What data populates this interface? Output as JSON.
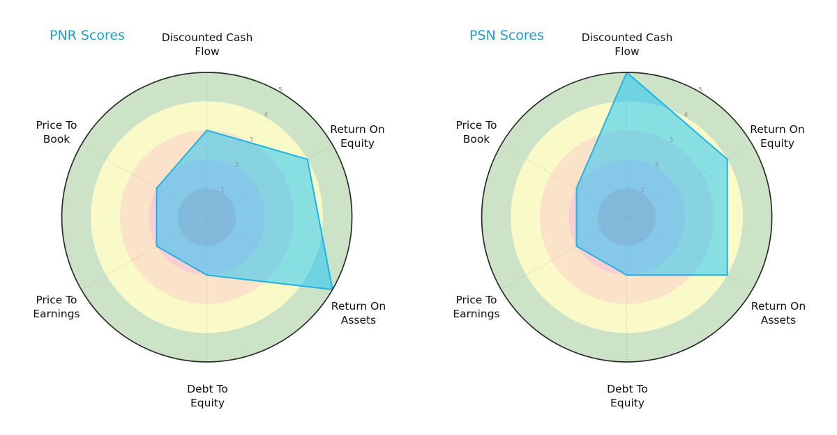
{
  "style": {
    "background": "#ffffff",
    "title_color": "#1d9ece",
    "label_color": "#111111",
    "tick_color": "#8c8c8c",
    "grid_color": "#9a9a9a",
    "outer_circle_color": "#2a2a2a",
    "band_colors": [
      "#f2b4bc",
      "#f8d0d4",
      "#fae3c8",
      "#fafac8",
      "#cde3c8"
    ],
    "polygon_fill": "rgba(0,191,255,0.46)",
    "polygon_stroke": "#1fb2e4"
  },
  "axis_label_lines": [
    [
      "Discounted Cash",
      "Flow"
    ],
    [
      "Return On",
      "Equity"
    ],
    [
      "Return On",
      "Assets"
    ],
    [
      "Debt To",
      "Equity"
    ],
    [
      "Price To",
      "Earnings"
    ],
    [
      "Price To",
      "Book"
    ]
  ],
  "chart_data": [
    {
      "type": "radar",
      "title": "PNR Scores",
      "categories": [
        "Discounted Cash Flow",
        "Return On Equity",
        "Return On Assets",
        "Debt To Equity",
        "Price To Earnings",
        "Price To Book"
      ],
      "values": [
        3,
        4,
        5,
        2,
        2,
        2
      ],
      "rlim": [
        0,
        5
      ],
      "rticks": [
        1,
        2,
        3,
        4,
        5
      ],
      "bands": [
        [
          0,
          1
        ],
        [
          1,
          2
        ],
        [
          2,
          3
        ],
        [
          3,
          4
        ],
        [
          4,
          5
        ]
      ],
      "grid": "radial-dashed",
      "legend": "none"
    },
    {
      "type": "radar",
      "title": "PSN Scores",
      "categories": [
        "Discounted Cash Flow",
        "Return On Equity",
        "Return On Assets",
        "Debt To Equity",
        "Price To Earnings",
        "Price To Book"
      ],
      "values": [
        5,
        4,
        4,
        2,
        2,
        2
      ],
      "rlim": [
        0,
        5
      ],
      "rticks": [
        1,
        2,
        3,
        4,
        5
      ],
      "bands": [
        [
          0,
          1
        ],
        [
          1,
          2
        ],
        [
          2,
          3
        ],
        [
          3,
          4
        ],
        [
          4,
          5
        ]
      ],
      "grid": "radial-dashed",
      "legend": "none"
    }
  ]
}
